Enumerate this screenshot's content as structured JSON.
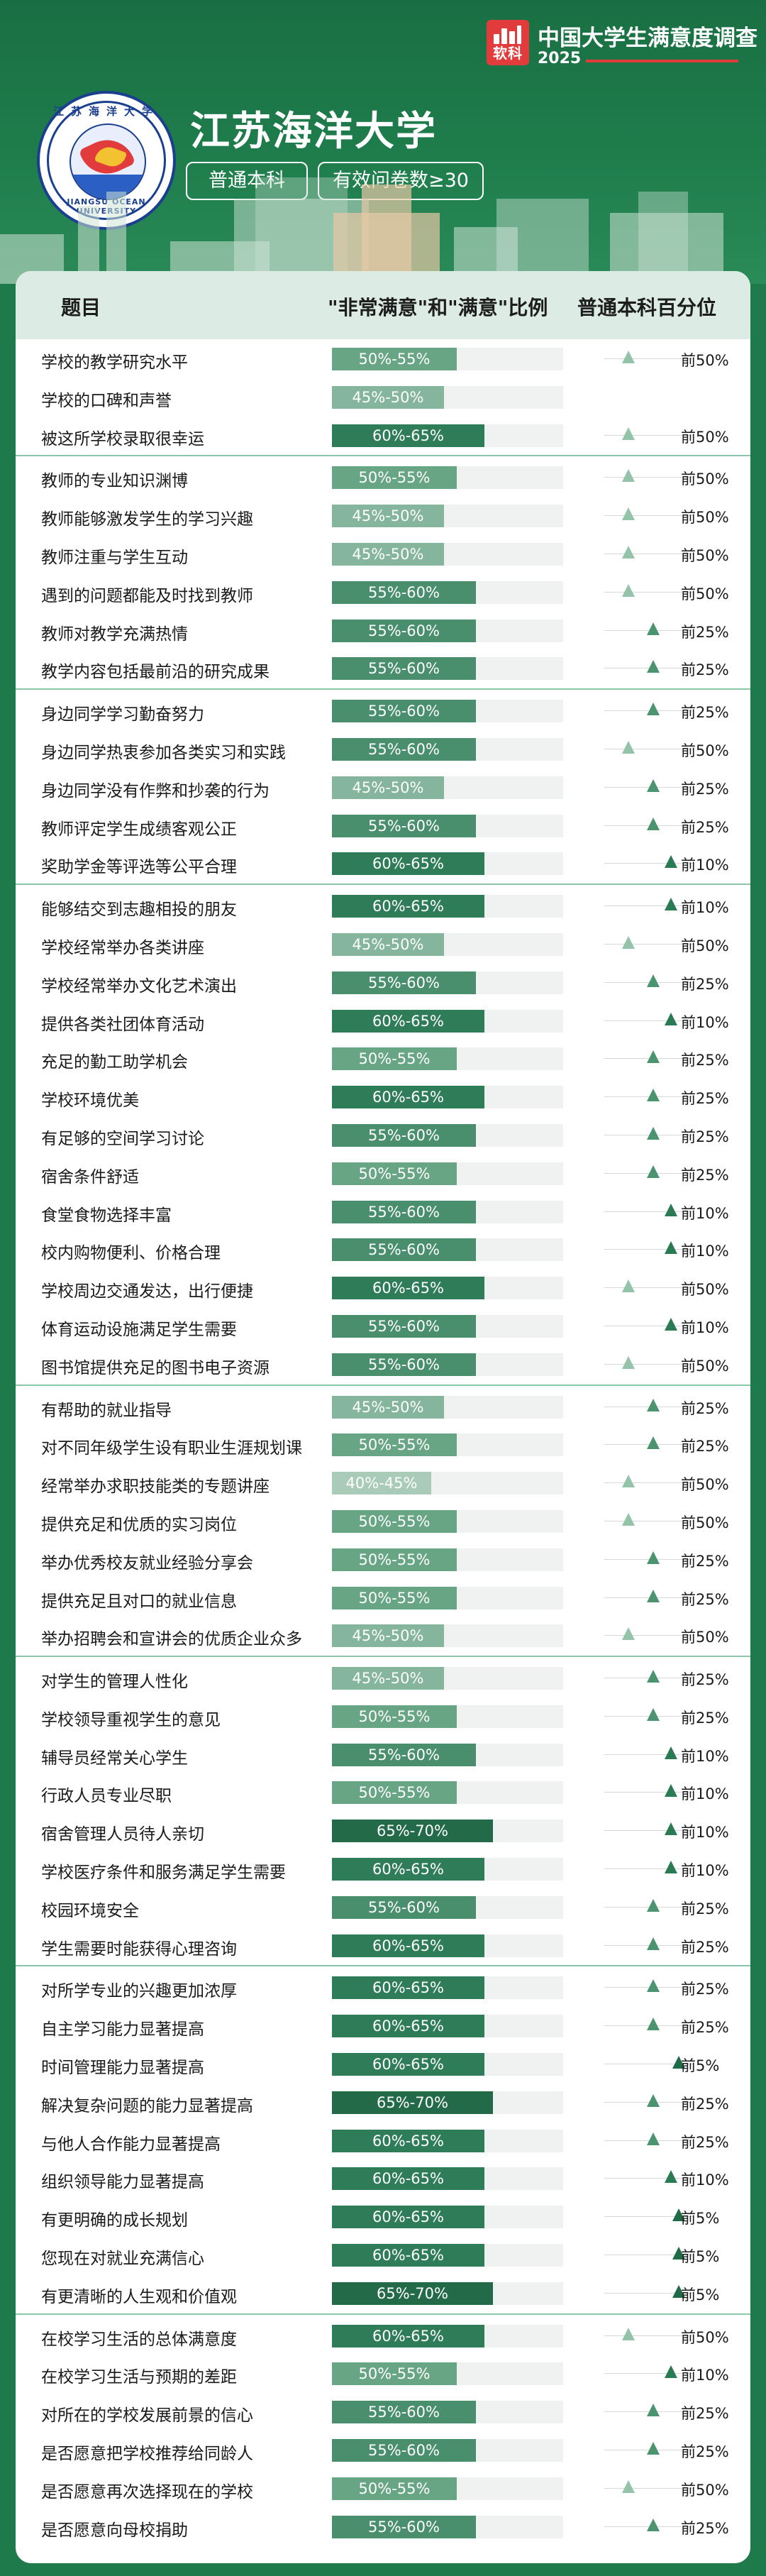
{
  "brand": {
    "logo_text": "软科",
    "title": "中国大学生满意度调查",
    "year": "2025"
  },
  "emblem": {
    "cn": "江苏海洋大学",
    "en": "JIANGSU OCEAN UNIVERSITY"
  },
  "university": {
    "name": "江苏海洋大学",
    "tag1": "普通本科",
    "tag2": "有效问卷数≥30"
  },
  "colors": {
    "accent": "#1e7a4b",
    "band_30_35": "#2b7a52",
    "band_35_40": "#2e7e56",
    "band_40_45": "#a9cbb8",
    "band_45_50": "#85b59c",
    "band_50_55": "#67a584",
    "band_55_60": "#4a8f6d",
    "band_60_65": "#2f7d58",
    "band_65_70": "#236a49",
    "pct_50": "#93c4aa",
    "pct_25": "#4c946f",
    "pct_10": "#2a7a54",
    "pct_5": "#1f6a47"
  },
  "table": {
    "headers": [
      "题目",
      "\"非常满意\"和\"满意\"比例",
      "普通本科百分位"
    ],
    "groups": [
      {
        "rows": [
          {
            "label": "学校的教学研究水平",
            "ratio": "50%-55%",
            "pct": "前50%"
          },
          {
            "label": "学校的口碑和声誉",
            "ratio": "45%-50%",
            "pct": ""
          },
          {
            "label": "被这所学校录取很幸运",
            "ratio": "60%-65%",
            "pct": "前50%"
          }
        ]
      },
      {
        "rows": [
          {
            "label": "教师的专业知识渊博",
            "ratio": "50%-55%",
            "pct": "前50%"
          },
          {
            "label": "教师能够激发学生的学习兴趣",
            "ratio": "45%-50%",
            "pct": "前50%"
          },
          {
            "label": "教师注重与学生互动",
            "ratio": "45%-50%",
            "pct": "前50%"
          },
          {
            "label": "遇到的问题都能及时找到教师",
            "ratio": "55%-60%",
            "pct": "前50%"
          },
          {
            "label": "教师对教学充满热情",
            "ratio": "55%-60%",
            "pct": "前25%"
          },
          {
            "label": "教学内容包括最前沿的研究成果",
            "ratio": "55%-60%",
            "pct": "前25%"
          }
        ]
      },
      {
        "rows": [
          {
            "label": "身边同学学习勤奋努力",
            "ratio": "55%-60%",
            "pct": "前25%"
          },
          {
            "label": "身边同学热衷参加各类实习和实践",
            "ratio": "55%-60%",
            "pct": "前50%"
          },
          {
            "label": "身边同学没有作弊和抄袭的行为",
            "ratio": "45%-50%",
            "pct": "前25%"
          },
          {
            "label": "教师评定学生成绩客观公正",
            "ratio": "55%-60%",
            "pct": "前25%"
          },
          {
            "label": "奖助学金等评选等公平合理",
            "ratio": "60%-65%",
            "pct": "前10%"
          }
        ]
      },
      {
        "rows": [
          {
            "label": "能够结交到志趣相投的朋友",
            "ratio": "60%-65%",
            "pct": "前10%"
          },
          {
            "label": "学校经常举办各类讲座",
            "ratio": "45%-50%",
            "pct": "前50%"
          },
          {
            "label": "学校经常举办文化艺术演出",
            "ratio": "55%-60%",
            "pct": "前25%"
          },
          {
            "label": "提供各类社团体育活动",
            "ratio": "60%-65%",
            "pct": "前10%"
          },
          {
            "label": "充足的勤工助学机会",
            "ratio": "50%-55%",
            "pct": "前25%"
          },
          {
            "label": "学校环境优美",
            "ratio": "60%-65%",
            "pct": "前25%"
          },
          {
            "label": "有足够的空间学习讨论",
            "ratio": "55%-60%",
            "pct": "前25%"
          },
          {
            "label": "宿舍条件舒适",
            "ratio": "50%-55%",
            "pct": "前25%"
          },
          {
            "label": "食堂食物选择丰富",
            "ratio": "55%-60%",
            "pct": "前10%"
          },
          {
            "label": "校内购物便利、价格合理",
            "ratio": "55%-60%",
            "pct": "前10%"
          },
          {
            "label": "学校周边交通发达，出行便捷",
            "ratio": "60%-65%",
            "pct": "前50%"
          },
          {
            "label": "体育运动设施满足学生需要",
            "ratio": "55%-60%",
            "pct": "前10%"
          },
          {
            "label": "图书馆提供充足的图书电子资源",
            "ratio": "55%-60%",
            "pct": "前50%"
          }
        ]
      },
      {
        "rows": [
          {
            "label": "有帮助的就业指导",
            "ratio": "45%-50%",
            "pct": "前25%"
          },
          {
            "label": "对不同年级学生设有职业生涯规划课",
            "ratio": "50%-55%",
            "pct": "前25%"
          },
          {
            "label": "经常举办求职技能类的专题讲座",
            "ratio": "40%-45%",
            "pct": "前50%"
          },
          {
            "label": "提供充足和优质的实习岗位",
            "ratio": "50%-55%",
            "pct": "前50%"
          },
          {
            "label": "举办优秀校友就业经验分享会",
            "ratio": "50%-55%",
            "pct": "前25%"
          },
          {
            "label": "提供充足且对口的就业信息",
            "ratio": "50%-55%",
            "pct": "前25%"
          },
          {
            "label": "举办招聘会和宣讲会的优质企业众多",
            "ratio": "45%-50%",
            "pct": "前50%"
          }
        ]
      },
      {
        "rows": [
          {
            "label": "对学生的管理人性化",
            "ratio": "45%-50%",
            "pct": "前25%"
          },
          {
            "label": "学校领导重视学生的意见",
            "ratio": "50%-55%",
            "pct": "前25%"
          },
          {
            "label": "辅导员经常关心学生",
            "ratio": "55%-60%",
            "pct": "前10%"
          },
          {
            "label": "行政人员专业尽职",
            "ratio": "50%-55%",
            "pct": "前10%"
          },
          {
            "label": "宿舍管理人员待人亲切",
            "ratio": "65%-70%",
            "pct": "前10%"
          },
          {
            "label": "学校医疗条件和服务满足学生需要",
            "ratio": "60%-65%",
            "pct": "前10%"
          },
          {
            "label": "校园环境安全",
            "ratio": "55%-60%",
            "pct": "前25%"
          },
          {
            "label": "学生需要时能获得心理咨询",
            "ratio": "60%-65%",
            "pct": "前25%"
          }
        ]
      },
      {
        "rows": [
          {
            "label": "对所学专业的兴趣更加浓厚",
            "ratio": "60%-65%",
            "pct": "前25%"
          },
          {
            "label": "自主学习能力显著提高",
            "ratio": "60%-65%",
            "pct": "前25%"
          },
          {
            "label": "时间管理能力显著提高",
            "ratio": "60%-65%",
            "pct": "前5%"
          },
          {
            "label": "解决复杂问题的能力显著提高",
            "ratio": "65%-70%",
            "pct": "前25%"
          },
          {
            "label": "与他人合作能力显著提高",
            "ratio": "60%-65%",
            "pct": "前25%"
          },
          {
            "label": "组织领导能力显著提高",
            "ratio": "60%-65%",
            "pct": "前10%"
          },
          {
            "label": "有更明确的成长规划",
            "ratio": "60%-65%",
            "pct": "前5%"
          },
          {
            "label": "您现在对就业充满信心",
            "ratio": "60%-65%",
            "pct": "前5%"
          },
          {
            "label": "有更清晰的人生观和价值观",
            "ratio": "65%-70%",
            "pct": "前5%"
          }
        ]
      },
      {
        "rows": [
          {
            "label": "在校学习生活的总体满意度",
            "ratio": "60%-65%",
            "pct": "前50%"
          },
          {
            "label": "在校学习生活与预期的差距",
            "ratio": "50%-55%",
            "pct": "前10%"
          },
          {
            "label": "对所在的学校发展前景的信心",
            "ratio": "55%-60%",
            "pct": "前25%"
          },
          {
            "label": "是否愿意把学校推荐给同龄人",
            "ratio": "55%-60%",
            "pct": "前25%"
          },
          {
            "label": "是否愿意再次选择现在的学校",
            "ratio": "50%-55%",
            "pct": "前50%"
          },
          {
            "label": "是否愿意向母校捐助",
            "ratio": "55%-60%",
            "pct": "前25%"
          }
        ]
      }
    ]
  }
}
